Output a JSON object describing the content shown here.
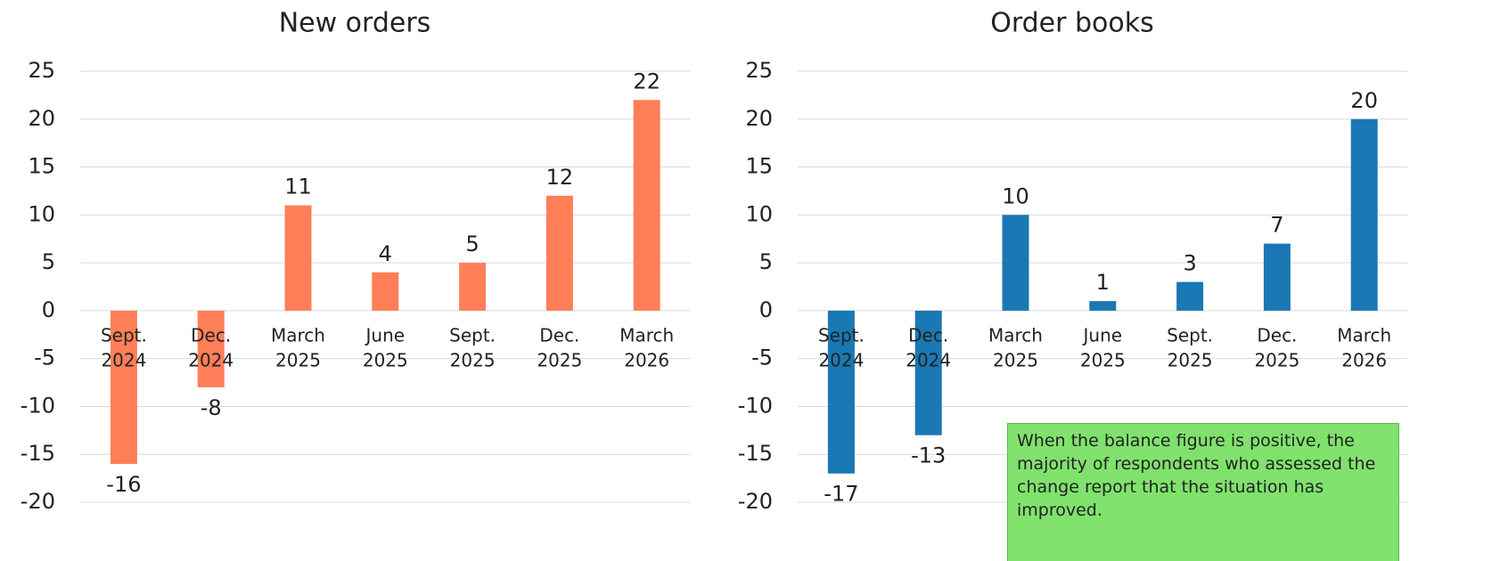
{
  "chart_data": [
    {
      "type": "bar",
      "title": "New orders",
      "categories": [
        [
          "Sept.",
          "2024"
        ],
        [
          "Dec.",
          "2024"
        ],
        [
          "March",
          "2025"
        ],
        [
          "June",
          "2025"
        ],
        [
          "Sept.",
          "2025"
        ],
        [
          "Dec.",
          "2025"
        ],
        [
          "March",
          "2026"
        ]
      ],
      "values": [
        -16,
        -8,
        11,
        4,
        5,
        12,
        22
      ],
      "color": "#ff7f59",
      "ylim": [
        -20,
        25
      ],
      "yticks": [
        -20,
        -15,
        -10,
        -5,
        0,
        5,
        10,
        15,
        20,
        25
      ],
      "grid": true
    },
    {
      "type": "bar",
      "title": "Order books",
      "categories": [
        [
          "Sept.",
          "2024"
        ],
        [
          "Dec.",
          "2024"
        ],
        [
          "March",
          "2025"
        ],
        [
          "June",
          "2025"
        ],
        [
          "Sept.",
          "2025"
        ],
        [
          "Dec.",
          "2025"
        ],
        [
          "March",
          "2026"
        ]
      ],
      "values": [
        -17,
        -13,
        10,
        1,
        3,
        7,
        20
      ],
      "color": "#1a78b4",
      "ylim": [
        -20,
        25
      ],
      "yticks": [
        -20,
        -15,
        -10,
        -5,
        0,
        5,
        10,
        15,
        20,
        25
      ],
      "grid": true,
      "annotation": "When the balance figure is positive, the majority of respondents who assessed the change report that the situation has improved."
    }
  ]
}
